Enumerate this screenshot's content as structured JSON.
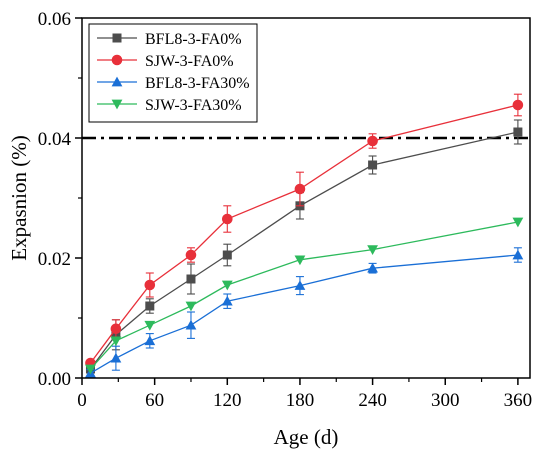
{
  "chart_data": {
    "type": "line",
    "title": "",
    "xlabel": "Age (d)",
    "ylabel": "Expasnion (%)",
    "xlim": [
      0,
      370
    ],
    "ylim": [
      0,
      0.06
    ],
    "xticks": [
      0,
      60,
      120,
      180,
      240,
      300,
      360
    ],
    "yticks": [
      0,
      0.02,
      0.04,
      0.06
    ],
    "xtick_labels": [
      "0",
      "60",
      "120",
      "180",
      "240",
      "300",
      "360"
    ],
    "ytick_labels": [
      "0.00",
      "0.02",
      "0.04",
      "0.06"
    ],
    "legend_position": "top-left",
    "grid": false,
    "reference_line": {
      "y": 0.04,
      "style": "dash-dot",
      "color": "#000000"
    },
    "series": [
      {
        "name": "BFL8-3-FA0%",
        "color": "#4d4d4d",
        "marker": "square",
        "x": [
          7,
          28,
          56,
          90,
          120,
          180,
          240,
          360
        ],
        "y": [
          0.0015,
          0.0072,
          0.012,
          0.0165,
          0.0205,
          0.0287,
          0.0355,
          0.041
        ],
        "err": [
          0.0004,
          0.0025,
          0.0012,
          0.0025,
          0.0018,
          0.0022,
          0.0015,
          0.002
        ]
      },
      {
        "name": "SJW-3-FA0%",
        "color": "#e8303a",
        "marker": "circle",
        "x": [
          7,
          28,
          56,
          90,
          120,
          180,
          240,
          360
        ],
        "y": [
          0.0025,
          0.0082,
          0.0155,
          0.0205,
          0.0265,
          0.0315,
          0.0395,
          0.0455
        ],
        "err": [
          0.0004,
          0.0015,
          0.002,
          0.0012,
          0.0022,
          0.0028,
          0.0012,
          0.0018
        ]
      },
      {
        "name": "BFL8-3-FA30%",
        "color": "#1a6fd6",
        "marker": "triangle-up",
        "x": [
          7,
          28,
          56,
          90,
          120,
          180,
          240,
          360
        ],
        "y": [
          0.0008,
          0.0033,
          0.0062,
          0.0088,
          0.0128,
          0.0154,
          0.0183,
          0.0205
        ],
        "err": [
          0.0006,
          0.002,
          0.0012,
          0.0022,
          0.0012,
          0.0015,
          0.0008,
          0.0012
        ]
      },
      {
        "name": "SJW-3-FA30%",
        "color": "#2dba5c",
        "marker": "triangle-down",
        "x": [
          7,
          28,
          56,
          90,
          120,
          180,
          240,
          360
        ],
        "y": [
          0.0015,
          0.0062,
          0.0088,
          0.012,
          0.0155,
          0.0197,
          0.0214,
          0.026
        ],
        "err": [
          0,
          0,
          0,
          0,
          0,
          0,
          0,
          0
        ]
      }
    ]
  }
}
